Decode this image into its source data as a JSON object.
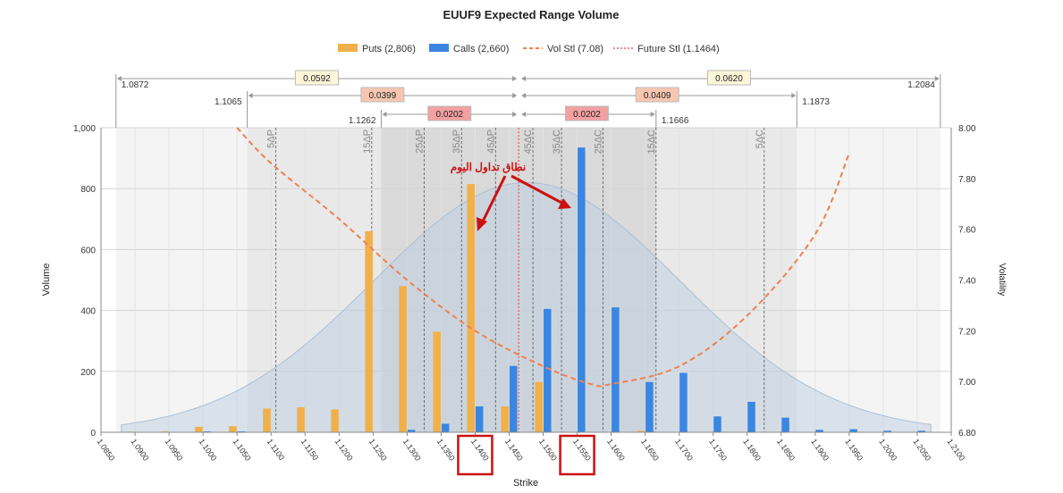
{
  "chart_data": {
    "type": "bar",
    "title": "EUUF9 Expected Range Volume",
    "xlabel": "Strike",
    "ylabel": "Volume",
    "y2label": "Volatility",
    "ylim": [
      0,
      1000
    ],
    "y2lim": [
      6.8,
      8.0
    ],
    "xlim": [
      1.085,
      1.21
    ],
    "yticks": [
      "0",
      "200",
      "400",
      "600",
      "800",
      "1,000"
    ],
    "y2ticks": [
      "6.80",
      "7.00",
      "7.20",
      "7.40",
      "7.60",
      "7.80",
      "8.00"
    ],
    "xticks": [
      "1.0850",
      "1.0900",
      "1.0950",
      "1.1000",
      "1.1050",
      "1.1100",
      "1.1150",
      "1.1200",
      "1.1250",
      "1.1300",
      "1.1350",
      "1.1400",
      "1.1450",
      "1.1500",
      "1.1550",
      "1.1600",
      "1.1650",
      "1.1700",
      "1.1750",
      "1.1800",
      "1.1850",
      "1.1900",
      "1.1950",
      "1.2000",
      "1.2050",
      "1.2100"
    ],
    "highlighted_ticks": [
      "1.1400",
      "1.1550"
    ],
    "legend": {
      "placement": "top",
      "entries": [
        {
          "name": "Puts (2,806)",
          "color": "#f0b04a",
          "kind": "bar"
        },
        {
          "name": "Calls (2,660)",
          "color": "#3a86e0",
          "kind": "bar"
        },
        {
          "name": "Vol Stl (7.08)",
          "color": "#f08050",
          "kind": "dash"
        },
        {
          "name": "Future Stl (1.1464)",
          "color": "#e04040",
          "kind": "dot"
        }
      ]
    },
    "series": [
      {
        "name": "Puts (2,806)",
        "color": "#f0b04a",
        "points": [
          {
            "x": 1.09,
            "y": 2
          },
          {
            "x": 1.095,
            "y": 3
          },
          {
            "x": 1.1,
            "y": 18
          },
          {
            "x": 1.105,
            "y": 20
          },
          {
            "x": 1.11,
            "y": 78
          },
          {
            "x": 1.115,
            "y": 82
          },
          {
            "x": 1.12,
            "y": 75
          },
          {
            "x": 1.125,
            "y": 660
          },
          {
            "x": 1.13,
            "y": 480
          },
          {
            "x": 1.135,
            "y": 330
          },
          {
            "x": 1.14,
            "y": 815
          },
          {
            "x": 1.145,
            "y": 85
          },
          {
            "x": 1.15,
            "y": 165
          },
          {
            "x": 1.165,
            "y": 5
          }
        ]
      },
      {
        "name": "Calls (2,660)",
        "color": "#3a86e0",
        "points": [
          {
            "x": 1.1,
            "y": 3
          },
          {
            "x": 1.105,
            "y": 3
          },
          {
            "x": 1.13,
            "y": 8
          },
          {
            "x": 1.135,
            "y": 28
          },
          {
            "x": 1.14,
            "y": 85
          },
          {
            "x": 1.145,
            "y": 218
          },
          {
            "x": 1.15,
            "y": 405
          },
          {
            "x": 1.155,
            "y": 935
          },
          {
            "x": 1.16,
            "y": 410
          },
          {
            "x": 1.165,
            "y": 165
          },
          {
            "x": 1.17,
            "y": 195
          },
          {
            "x": 1.175,
            "y": 52
          },
          {
            "x": 1.18,
            "y": 100
          },
          {
            "x": 1.185,
            "y": 48
          },
          {
            "x": 1.19,
            "y": 8
          },
          {
            "x": 1.195,
            "y": 10
          },
          {
            "x": 1.2,
            "y": 5
          },
          {
            "x": 1.205,
            "y": 5
          }
        ]
      },
      {
        "name": "Vol Stl (7.08)",
        "color": "#f08050",
        "axis": "right",
        "points": [
          {
            "x": 1.105,
            "y": 8.0
          },
          {
            "x": 1.11,
            "y": 7.86
          },
          {
            "x": 1.12,
            "y": 7.64
          },
          {
            "x": 1.13,
            "y": 7.4
          },
          {
            "x": 1.14,
            "y": 7.2
          },
          {
            "x": 1.15,
            "y": 7.06
          },
          {
            "x": 1.157,
            "y": 6.99
          },
          {
            "x": 1.16,
            "y": 6.99
          },
          {
            "x": 1.17,
            "y": 7.06
          },
          {
            "x": 1.18,
            "y": 7.26
          },
          {
            "x": 1.19,
            "y": 7.58
          },
          {
            "x": 1.195,
            "y": 7.9
          }
        ]
      }
    ],
    "future_settlement": 1.1464,
    "expected_range_curve_peak": 820,
    "delta_markers": [
      {
        "label": "5ΔP",
        "x": 1.1107
      },
      {
        "label": "15ΔP",
        "x": 1.1248
      },
      {
        "label": "25ΔP",
        "x": 1.1325
      },
      {
        "label": "35ΔP",
        "x": 1.138
      },
      {
        "label": "45ΔP",
        "x": 1.143
      },
      {
        "label": "45ΔC",
        "x": 1.1485
      },
      {
        "label": "35ΔC",
        "x": 1.1527
      },
      {
        "label": "25ΔC",
        "x": 1.1588
      },
      {
        "label": "15ΔC",
        "x": 1.1666
      },
      {
        "label": "5ΔC",
        "x": 1.1825
      }
    ],
    "range_bands": [
      {
        "left": 1.0872,
        "right": 1.2084,
        "left_label": "1.0872",
        "right_label": "1.2084",
        "width_left": "0.0592",
        "width_right": "0.0620",
        "color": "#fdf6d8"
      },
      {
        "left": 1.1065,
        "right": 1.1873,
        "left_label": "1.1065",
        "right_label": "1.1873",
        "width_left": "0.0399",
        "width_right": "0.0409",
        "color": "#f6c6b0"
      },
      {
        "left": 1.1262,
        "right": 1.1666,
        "left_label": "1.1262",
        "right_label": "1.1666",
        "width_left": "0.0202",
        "width_right": "0.0202",
        "color": "#f2a0a0"
      }
    ],
    "annotation": "نطاق تداول اليوم",
    "grid": true
  }
}
